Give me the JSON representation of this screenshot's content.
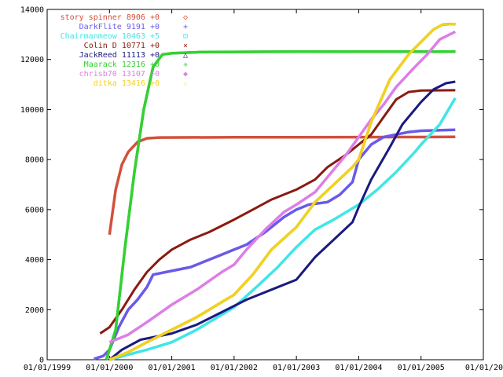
{
  "chart_data": {
    "type": "line",
    "title": "",
    "xlabel": "",
    "ylabel": "",
    "xlim": [
      1999.0,
      2006.0
    ],
    "ylim": [
      0,
      14000
    ],
    "grid": false,
    "legend_position": "top-right",
    "x_ticks": [
      {
        "x": 1999.0,
        "label": "01/01/1999"
      },
      {
        "x": 2000.0,
        "label": "01/01/2000"
      },
      {
        "x": 2001.0,
        "label": "01/01/2001"
      },
      {
        "x": 2002.0,
        "label": "01/01/2002"
      },
      {
        "x": 2003.0,
        "label": "01/01/2003"
      },
      {
        "x": 2004.0,
        "label": "01/01/2004"
      },
      {
        "x": 2005.0,
        "label": "01/01/2005"
      },
      {
        "x": 2006.0,
        "label": "01/01/20"
      }
    ],
    "y_ticks": [
      0,
      2000,
      4000,
      6000,
      8000,
      10000,
      12000,
      14000
    ],
    "series": [
      {
        "name": "story spinner",
        "score": "8906",
        "delta": "+0",
        "marker": "◇",
        "color": "#d2503c",
        "points": [
          [
            2000.0,
            5000
          ],
          [
            2000.1,
            6800
          ],
          [
            2000.2,
            7800
          ],
          [
            2000.3,
            8300
          ],
          [
            2000.45,
            8700
          ],
          [
            2000.6,
            8850
          ],
          [
            2000.8,
            8880
          ],
          [
            2002.0,
            8890
          ],
          [
            2004.0,
            8895
          ],
          [
            2005.0,
            8900
          ],
          [
            2005.55,
            8906
          ]
        ]
      },
      {
        "name": "DarkFlite",
        "score": "9191",
        "delta": "+0",
        "marker": "+",
        "color": "#6a5ae8",
        "points": [
          [
            1999.75,
            30
          ],
          [
            1999.9,
            150
          ],
          [
            2000.0,
            400
          ],
          [
            2000.15,
            1300
          ],
          [
            2000.3,
            2000
          ],
          [
            2000.45,
            2400
          ],
          [
            2000.6,
            2900
          ],
          [
            2000.7,
            3400
          ],
          [
            2001.0,
            3550
          ],
          [
            2001.3,
            3700
          ],
          [
            2001.5,
            3900
          ],
          [
            2001.8,
            4200
          ],
          [
            2002.0,
            4400
          ],
          [
            2002.2,
            4600
          ],
          [
            2002.5,
            5100
          ],
          [
            2002.8,
            5700
          ],
          [
            2003.0,
            6000
          ],
          [
            2003.2,
            6200
          ],
          [
            2003.5,
            6300
          ],
          [
            2003.7,
            6600
          ],
          [
            2003.9,
            7100
          ],
          [
            2004.0,
            8000
          ],
          [
            2004.2,
            8600
          ],
          [
            2004.4,
            8900
          ],
          [
            2004.6,
            9000
          ],
          [
            2004.8,
            9100
          ],
          [
            2005.0,
            9150
          ],
          [
            2005.55,
            9191
          ]
        ]
      },
      {
        "name": "Chairmanmeow",
        "score": "10463",
        "delta": "+5",
        "marker": "⊡",
        "color": "#40e6e6",
        "points": [
          [
            2000.0,
            0
          ],
          [
            2000.3,
            200
          ],
          [
            2000.6,
            400
          ],
          [
            2001.0,
            700
          ],
          [
            2001.4,
            1200
          ],
          [
            2001.8,
            1800
          ],
          [
            2002.0,
            2100
          ],
          [
            2002.4,
            3000
          ],
          [
            2002.7,
            3700
          ],
          [
            2003.0,
            4500
          ],
          [
            2003.3,
            5200
          ],
          [
            2003.6,
            5600
          ],
          [
            2004.0,
            6200
          ],
          [
            2004.3,
            6800
          ],
          [
            2004.6,
            7500
          ],
          [
            2004.9,
            8300
          ],
          [
            2005.0,
            8600
          ],
          [
            2005.3,
            9400
          ],
          [
            2005.55,
            10463
          ]
        ]
      },
      {
        "name": "Colin D",
        "score": "10771",
        "delta": "+0",
        "marker": "×",
        "color": "#8b1a10",
        "points": [
          [
            1999.85,
            1050
          ],
          [
            2000.0,
            1300
          ],
          [
            2000.2,
            2000
          ],
          [
            2000.4,
            2800
          ],
          [
            2000.6,
            3500
          ],
          [
            2000.8,
            4000
          ],
          [
            2001.0,
            4400
          ],
          [
            2001.3,
            4800
          ],
          [
            2001.6,
            5100
          ],
          [
            2002.0,
            5600
          ],
          [
            2002.3,
            6000
          ],
          [
            2002.6,
            6400
          ],
          [
            2003.0,
            6800
          ],
          [
            2003.3,
            7200
          ],
          [
            2003.5,
            7700
          ],
          [
            2003.8,
            8200
          ],
          [
            2004.0,
            8600
          ],
          [
            2004.2,
            9000
          ],
          [
            2004.4,
            9700
          ],
          [
            2004.6,
            10400
          ],
          [
            2004.8,
            10700
          ],
          [
            2005.0,
            10760
          ],
          [
            2005.55,
            10771
          ]
        ]
      },
      {
        "name": "JackReed",
        "score": "11113",
        "delta": "+0",
        "marker": "△",
        "color": "#1a1a80",
        "points": [
          [
            2000.0,
            0
          ],
          [
            2000.2,
            400
          ],
          [
            2000.5,
            800
          ],
          [
            2001.0,
            1050
          ],
          [
            2001.4,
            1400
          ],
          [
            2001.8,
            1900
          ],
          [
            2002.2,
            2400
          ],
          [
            2002.6,
            2800
          ],
          [
            2003.0,
            3200
          ],
          [
            2003.3,
            4100
          ],
          [
            2003.6,
            4800
          ],
          [
            2003.9,
            5500
          ],
          [
            2004.0,
            6100
          ],
          [
            2004.2,
            7200
          ],
          [
            2004.5,
            8500
          ],
          [
            2004.7,
            9400
          ],
          [
            2005.0,
            10300
          ],
          [
            2005.2,
            10800
          ],
          [
            2005.4,
            11050
          ],
          [
            2005.55,
            11113
          ]
        ]
      },
      {
        "name": "Maarack",
        "score": "12316",
        "delta": "+0",
        "marker": "✳",
        "color": "#32d232",
        "points": [
          [
            1999.95,
            0
          ],
          [
            2000.1,
            1200
          ],
          [
            2000.25,
            4500
          ],
          [
            2000.4,
            7500
          ],
          [
            2000.55,
            10000
          ],
          [
            2000.7,
            11700
          ],
          [
            2000.85,
            12200
          ],
          [
            2001.0,
            12250
          ],
          [
            2001.5,
            12300
          ],
          [
            2003.0,
            12310
          ],
          [
            2005.55,
            12316
          ]
        ]
      },
      {
        "name": "chrisb70",
        "score": "13107",
        "delta": "+0",
        "marker": "◆",
        "color": "#dd7ee6",
        "points": [
          [
            2000.0,
            700
          ],
          [
            2000.3,
            1000
          ],
          [
            2000.6,
            1500
          ],
          [
            2001.0,
            2200
          ],
          [
            2001.4,
            2800
          ],
          [
            2001.8,
            3500
          ],
          [
            2002.0,
            3800
          ],
          [
            2002.2,
            4400
          ],
          [
            2002.5,
            5200
          ],
          [
            2002.8,
            5900
          ],
          [
            2003.0,
            6200
          ],
          [
            2003.3,
            6700
          ],
          [
            2003.5,
            7300
          ],
          [
            2003.8,
            8200
          ],
          [
            2004.0,
            8900
          ],
          [
            2004.2,
            9600
          ],
          [
            2004.4,
            10200
          ],
          [
            2004.6,
            10900
          ],
          [
            2004.9,
            11700
          ],
          [
            2005.1,
            12200
          ],
          [
            2005.3,
            12800
          ],
          [
            2005.55,
            13107
          ]
        ]
      },
      {
        "name": "ditka",
        "score": "13416",
        "delta": "+0",
        "marker": "☆",
        "color": "#f2d21e",
        "points": [
          [
            2000.0,
            0
          ],
          [
            2000.3,
            300
          ],
          [
            2000.6,
            700
          ],
          [
            2001.0,
            1200
          ],
          [
            2001.4,
            1700
          ],
          [
            2001.8,
            2300
          ],
          [
            2002.0,
            2600
          ],
          [
            2002.3,
            3400
          ],
          [
            2002.6,
            4400
          ],
          [
            2003.0,
            5300
          ],
          [
            2003.3,
            6300
          ],
          [
            2003.6,
            7000
          ],
          [
            2003.9,
            7700
          ],
          [
            2004.0,
            8000
          ],
          [
            2004.2,
            9500
          ],
          [
            2004.5,
            11200
          ],
          [
            2004.8,
            12200
          ],
          [
            2005.0,
            12700
          ],
          [
            2005.2,
            13200
          ],
          [
            2005.35,
            13400
          ],
          [
            2005.55,
            13416
          ]
        ]
      }
    ]
  }
}
